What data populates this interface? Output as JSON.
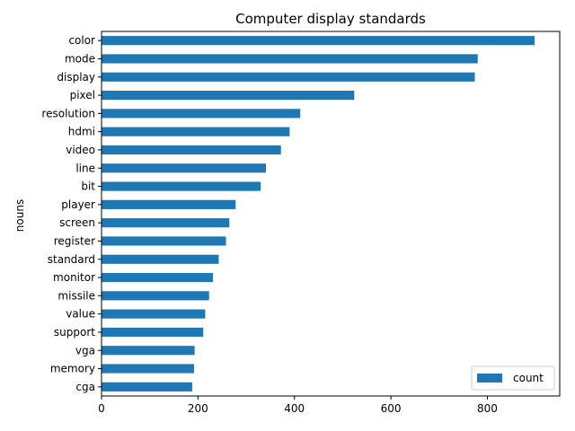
{
  "chart_data": {
    "type": "bar",
    "orientation": "horizontal",
    "title": "Computer display standards",
    "xlabel": "",
    "ylabel": "nouns",
    "categories": [
      "color",
      "mode",
      "display",
      "pixel",
      "resolution",
      "hdmi",
      "video",
      "line",
      "bit",
      "player",
      "screen",
      "register",
      "standard",
      "monitor",
      "missile",
      "value",
      "support",
      "vga",
      "memory",
      "cga"
    ],
    "series": [
      {
        "name": "count",
        "values": [
          898,
          780,
          774,
          524,
          412,
          390,
          372,
          341,
          330,
          278,
          265,
          258,
          243,
          231,
          223,
          215,
          211,
          193,
          192,
          188
        ],
        "color": "#1f77b4"
      }
    ],
    "xlim": [
      0,
      950
    ],
    "xticks": [
      "0",
      "200",
      "400",
      "600",
      "800"
    ],
    "grid": false,
    "legend_position": "lower-right"
  }
}
